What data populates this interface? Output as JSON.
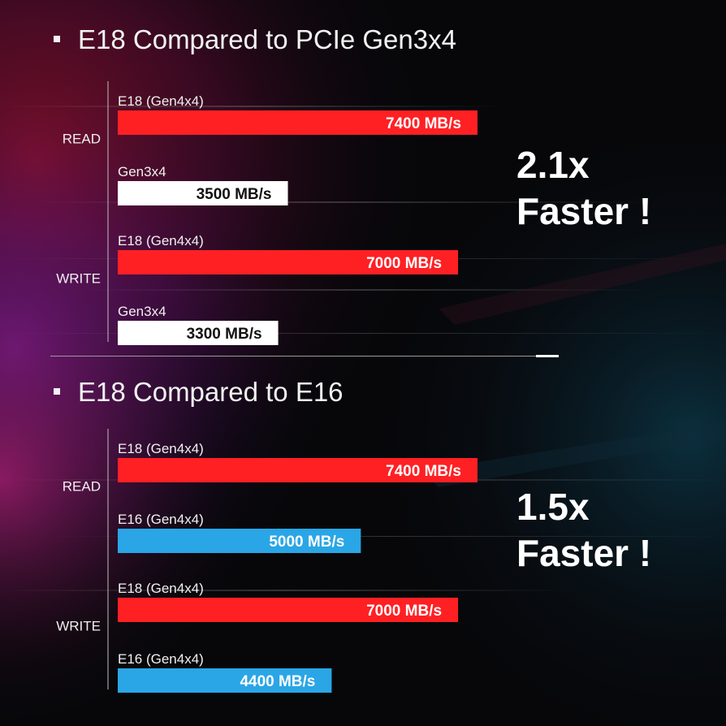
{
  "colors": {
    "e18": "#ff2024",
    "gen3": "#ffffff",
    "e16": "#2aa6e6",
    "value_on_dark_bar": "#ffffff",
    "value_on_light_bar": "#111111"
  },
  "panels": [
    {
      "heading": "E18 Compared to PCIe Gen3x4",
      "callout": {
        "line1": "2.1x",
        "line2": "Faster !"
      }
    },
    {
      "heading": "E18 Compared to E16",
      "callout": {
        "line1": "1.5x",
        "line2": "Faster !"
      }
    }
  ],
  "chart_data": [
    {
      "type": "bar",
      "orientation": "horizontal",
      "title": "E18 Compared to PCIe Gen3x4",
      "unit": "MB/s",
      "xlim": [
        0,
        7400
      ],
      "grid": false,
      "categories": [
        "READ",
        "WRITE"
      ],
      "series": [
        {
          "name": "E18 (Gen4x4)",
          "color": "#ff2024",
          "values": [
            7400,
            7000
          ],
          "labels": [
            "7400 MB/s",
            "7000 MB/s"
          ]
        },
        {
          "name": "Gen3x4",
          "color": "#ffffff",
          "values": [
            3500,
            3300
          ],
          "labels": [
            "3500 MB/s",
            "3300 MB/s"
          ]
        }
      ]
    },
    {
      "type": "bar",
      "orientation": "horizontal",
      "title": "E18 Compared to E16",
      "unit": "MB/s",
      "xlim": [
        0,
        7400
      ],
      "grid": false,
      "categories": [
        "READ",
        "WRITE"
      ],
      "series": [
        {
          "name": "E18 (Gen4x4)",
          "color": "#ff2024",
          "values": [
            7400,
            7000
          ],
          "labels": [
            "7400 MB/s",
            "7000 MB/s"
          ]
        },
        {
          "name": "E16 (Gen4x4)",
          "color": "#2aa6e6",
          "values": [
            5000,
            4400
          ],
          "labels": [
            "5000 MB/s",
            "4400 MB/s"
          ]
        }
      ]
    }
  ]
}
